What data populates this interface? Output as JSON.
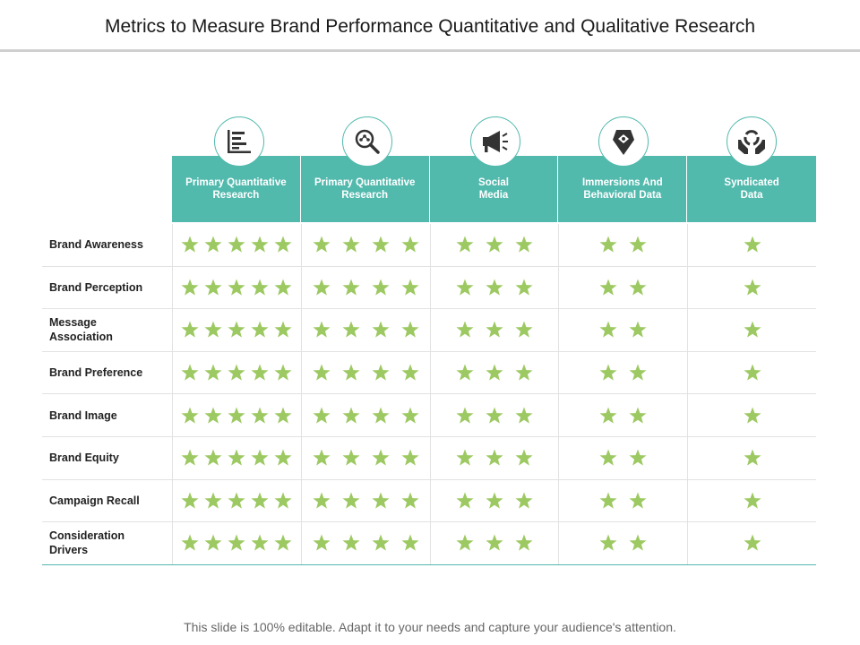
{
  "title": "Metrics to Measure Brand Performance Quantitative and Qualitative Research",
  "accent_color": "#52b9ad",
  "star_color": "#9dc962",
  "columns": [
    {
      "label": "Primary Quantitative\nResearch",
      "icon": "bar-chart-icon"
    },
    {
      "label": "Primary Quantitative\nResearch",
      "icon": "magnifier-icon"
    },
    {
      "label": "Social\nMedia",
      "icon": "megaphone-icon"
    },
    {
      "label": "Immersions And\nBehavioral Data",
      "icon": "location-pin-icon"
    },
    {
      "label": "Syndicated\nData",
      "icon": "hands-recycle-icon"
    }
  ],
  "rows": [
    {
      "label": "Brand Awareness",
      "ratings": [
        5,
        4,
        3,
        2,
        1
      ]
    },
    {
      "label": "Brand Perception",
      "ratings": [
        5,
        4,
        3,
        2,
        1
      ]
    },
    {
      "label": "Message\nAssociation",
      "ratings": [
        5,
        4,
        3,
        2,
        1
      ]
    },
    {
      "label": "Brand Preference",
      "ratings": [
        5,
        4,
        3,
        2,
        1
      ]
    },
    {
      "label": "Brand Image",
      "ratings": [
        5,
        4,
        3,
        2,
        1
      ]
    },
    {
      "label": "Brand Equity",
      "ratings": [
        5,
        4,
        3,
        2,
        1
      ]
    },
    {
      "label": "Campaign Recall",
      "ratings": [
        5,
        4,
        3,
        2,
        1
      ]
    },
    {
      "label": "Consideration\nDrivers",
      "ratings": [
        5,
        4,
        3,
        2,
        1
      ]
    }
  ],
  "footer": "This slide is 100% editable. Adapt it to your needs and capture your audience's attention."
}
